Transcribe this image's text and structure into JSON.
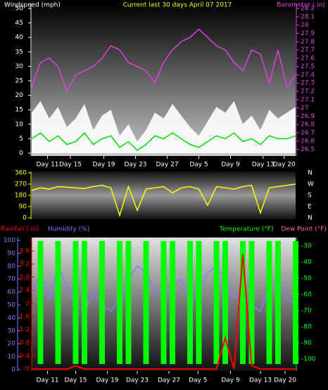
{
  "chart_data": [
    {
      "type": "line",
      "title": "Current last 30 days April 07 2017",
      "x": [
        0,
        1,
        2,
        3,
        4,
        5,
        6,
        7,
        8,
        9,
        10,
        11,
        12,
        13,
        14,
        15,
        16,
        17,
        18,
        19,
        20,
        21,
        22,
        23,
        24,
        25,
        26,
        27,
        28,
        29,
        30
      ],
      "xlim": [
        0,
        30
      ],
      "xticks": [
        {
          "value": 1.8,
          "label": "Day 11"
        },
        {
          "value": 4.4,
          "label": "Day 15"
        },
        {
          "value": 8.2,
          "label": "Day 19"
        },
        {
          "value": 11.8,
          "label": "Day 23"
        },
        {
          "value": 15.4,
          "label": "Day 27"
        },
        {
          "value": 19.0,
          "label": "Day 5"
        },
        {
          "value": 22.6,
          "label": "Day 9"
        },
        {
          "value": 26.3,
          "label": "Day 13"
        },
        {
          "value": 28.7,
          "label": "Day 20"
        }
      ],
      "ylim": [
        -0.97,
        51.7
      ],
      "yticks": [
        0,
        5,
        10,
        15,
        20,
        25,
        30,
        35,
        40,
        45,
        50
      ],
      "y2lim": [
        26.42,
        28.26
      ],
      "y2ticks": [
        26.5,
        26.6,
        26.7,
        26.8,
        26.9,
        27,
        27.1,
        27.2,
        27.3,
        27.4,
        27.5,
        27.6,
        27.7,
        27.8,
        27.9,
        28,
        28.1,
        28.2
      ],
      "series": [
        {
          "name": "Windspeed (mph)",
          "type": "area",
          "color": "#ffffff",
          "values": [
            14,
            18,
            12,
            16,
            9,
            12,
            17,
            8,
            13,
            15,
            6,
            10,
            4,
            8,
            14,
            12,
            17,
            13,
            9,
            6,
            11,
            16,
            14,
            18,
            10,
            13,
            8,
            15,
            12,
            14,
            16
          ]
        },
        {
          "type": "line",
          "color": "#00dd00",
          "values": [
            5,
            7,
            4,
            6,
            3,
            4,
            7,
            3,
            5,
            6,
            2,
            4,
            1,
            3,
            6,
            5,
            7,
            5,
            3,
            2,
            4,
            6,
            5,
            7,
            4,
            5,
            3,
            6,
            5,
            5,
            6
          ]
        },
        {
          "name": "Barometer (.in)",
          "type": "line",
          "axis": "y2",
          "color": "#e040e0",
          "values": [
            27.25,
            27.55,
            27.6,
            27.5,
            27.2,
            27.4,
            27.45,
            27.5,
            27.6,
            27.75,
            27.7,
            27.55,
            27.5,
            27.45,
            27.3,
            27.55,
            27.7,
            27.8,
            27.85,
            27.95,
            27.85,
            27.75,
            27.7,
            27.55,
            27.45,
            27.7,
            27.65,
            27.3,
            27.7,
            27.25,
            27.4
          ]
        }
      ]
    },
    {
      "type": "line",
      "x": [
        0,
        1,
        2,
        3,
        4,
        5,
        6,
        7,
        8,
        9,
        10,
        11,
        12,
        13,
        14,
        15,
        16,
        17,
        18,
        19,
        20,
        21,
        22,
        23,
        24,
        25,
        26,
        27,
        28,
        29,
        30
      ],
      "xlim": [
        0,
        30
      ],
      "ylim": [
        -11,
        371
      ],
      "yticks": [
        0,
        90,
        180,
        270,
        360
      ],
      "y2ticks": [
        {
          "value": 360,
          "label": "N"
        },
        {
          "value": 270,
          "label": "W"
        },
        {
          "value": 180,
          "label": "S"
        },
        {
          "value": 90,
          "label": "E"
        },
        {
          "value": 0,
          "label": "N"
        }
      ],
      "series": [
        {
          "type": "line",
          "color": "#ffff00",
          "values": [
            220,
            240,
            230,
            250,
            245,
            240,
            235,
            250,
            260,
            240,
            20,
            250,
            60,
            230,
            240,
            250,
            200,
            240,
            250,
            230,
            100,
            250,
            240,
            230,
            250,
            260,
            40,
            240,
            250,
            260,
            270
          ]
        }
      ]
    },
    {
      "type": "bar",
      "x": [
        0,
        1,
        2,
        3,
        4,
        5,
        6,
        7,
        8,
        9,
        10,
        11,
        12,
        13,
        14,
        15,
        16,
        17,
        18,
        19,
        20,
        21,
        22,
        23,
        24,
        25,
        26,
        27,
        28,
        29,
        30
      ],
      "xlim": [
        0,
        30
      ],
      "xticks": [
        {
          "value": 1.8,
          "label": "Day 11"
        },
        {
          "value": 5.0,
          "label": "Day 15"
        },
        {
          "value": 8.6,
          "label": "Day 19"
        },
        {
          "value": 12.0,
          "label": "Day 23"
        },
        {
          "value": 15.6,
          "label": "Day 27"
        },
        {
          "value": 18.9,
          "label": "Day 5"
        },
        {
          "value": 22.6,
          "label": "Day 9"
        },
        {
          "value": 26.0,
          "label": "Day 13"
        },
        {
          "value": 28.8,
          "label": "Day 20"
        }
      ],
      "ylim": [
        -1.1,
        102.2
      ],
      "yticks": [
        0,
        10,
        20,
        30,
        40,
        50,
        60,
        70,
        80,
        90,
        100
      ],
      "y2lim": [
        -0.06,
        4.01
      ],
      "y2ticks": [
        0,
        0.4,
        0.8,
        1.2,
        1.6,
        2,
        2.4,
        2.8,
        3.2,
        3.6
      ],
      "y3lim": [
        -107.4,
        -24.8
      ],
      "y3ticks": [
        -30,
        -40,
        -50,
        -60,
        -70,
        -80,
        -90,
        -100
      ],
      "dew_point_label": "Dew Point (°F)",
      "series": [
        {
          "name": "Rainfall (.in)",
          "type": "line",
          "axis": "y2",
          "color": "#ff0000",
          "values": [
            0,
            0,
            0,
            0,
            0,
            0.1,
            0,
            0,
            0,
            0,
            0,
            0,
            0,
            0,
            0,
            0,
            0,
            0,
            0,
            0,
            0,
            0,
            0.95,
            0,
            3.5,
            0.1,
            0,
            0,
            0,
            0,
            0
          ]
        },
        {
          "name": "Humidity (%)",
          "type": "line",
          "color": "#7f7fff",
          "values": [
            60,
            75,
            55,
            80,
            65,
            50,
            45,
            60,
            50,
            45,
            55,
            70,
            80,
            75,
            60,
            55,
            65,
            70,
            50,
            60,
            75,
            80,
            70,
            55,
            60,
            50,
            45,
            65,
            70,
            55,
            50
          ]
        },
        {
          "name": "Temperature (°F)",
          "type": "bar",
          "axis": "y3",
          "color": "#00ff00",
          "values": [
            null,
            -27,
            null,
            -27,
            null,
            -27,
            -27,
            null,
            -27,
            null,
            -27,
            -27,
            null,
            -27,
            null,
            -27,
            -27,
            null,
            -27,
            -27,
            null,
            -27,
            -27,
            null,
            -27,
            -27,
            null,
            -27,
            -27,
            null,
            -27
          ]
        }
      ]
    }
  ]
}
